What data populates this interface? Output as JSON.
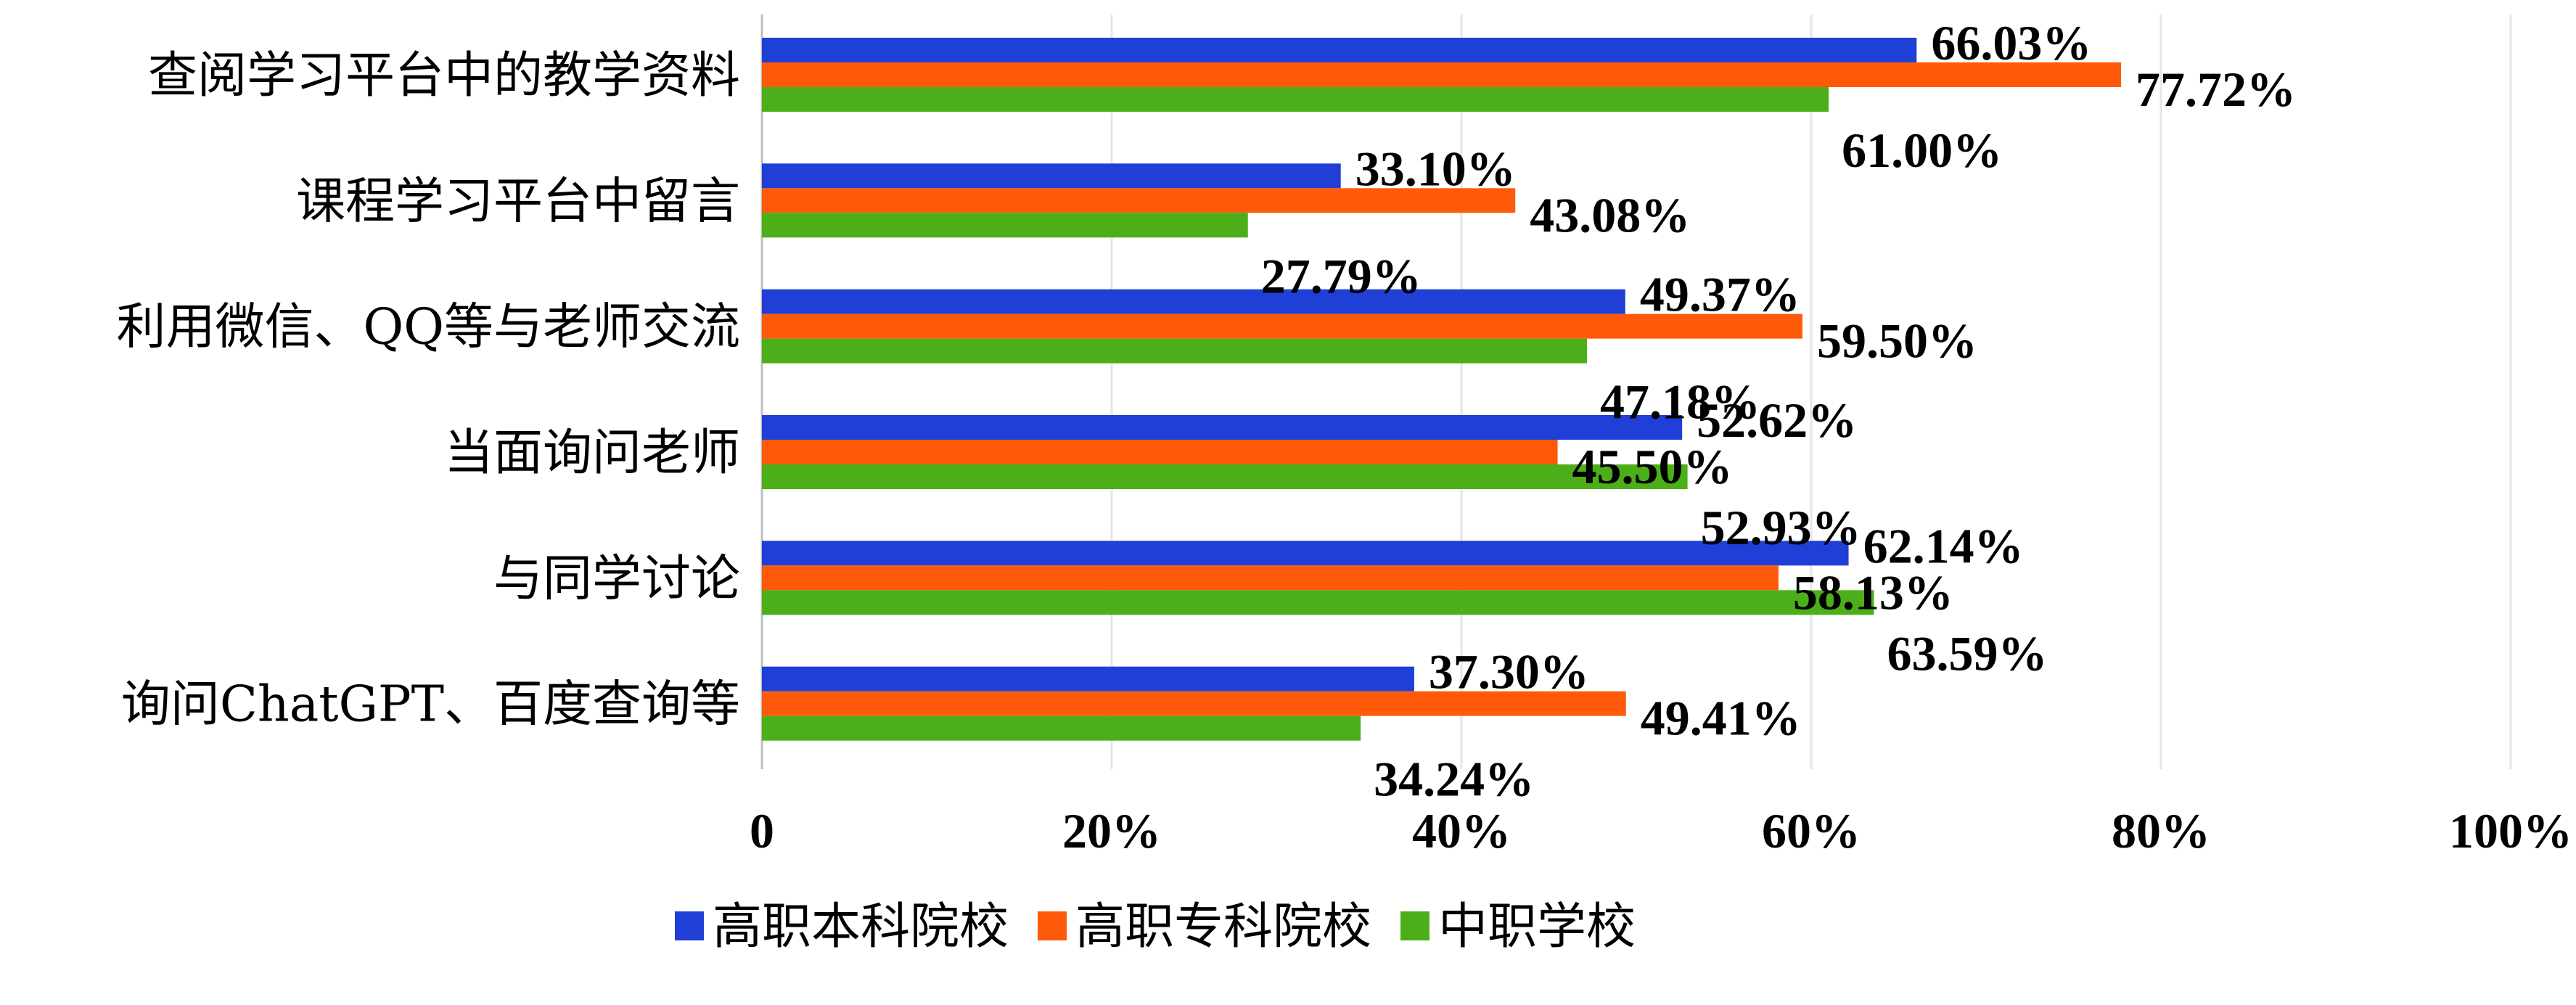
{
  "chart_data": {
    "type": "bar",
    "orientation": "horizontal",
    "categories": [
      "查阅学习平台中的教学资料",
      "课程学习平台中留言",
      "利用微信、QQ等与老师交流",
      "当面询问老师",
      "与同学讨论",
      "询问ChatGPT、百度查询等"
    ],
    "series": [
      {
        "name": "高职本科院校",
        "color": "#1f3fd6",
        "values": [
          66.03,
          33.1,
          49.37,
          52.62,
          62.14,
          37.3
        ],
        "labels": [
          "66.03%",
          "33.10%",
          "49.37%",
          "52.62%",
          "62.14%",
          "37.30%"
        ]
      },
      {
        "name": "高职专科院校",
        "color": "#ff5a0a",
        "values": [
          77.72,
          43.08,
          59.5,
          45.5,
          58.13,
          49.41
        ],
        "labels": [
          "77.72%",
          "43.08%",
          "59.50%",
          "45.50%",
          "58.13%",
          "49.41%"
        ]
      },
      {
        "name": "中职学校",
        "color": "#4caf1a",
        "values": [
          61.0,
          27.79,
          47.18,
          52.93,
          63.59,
          34.24
        ],
        "labels": [
          "61.00%",
          "27.79%",
          "47.18%",
          "52.93%",
          "63.59%",
          "34.24%"
        ]
      }
    ],
    "x_ticks": [
      "0",
      "20%",
      "40%",
      "60%",
      "80%",
      "100%"
    ],
    "xlim": [
      0,
      100
    ],
    "grid": true,
    "legend_position": "bottom"
  }
}
